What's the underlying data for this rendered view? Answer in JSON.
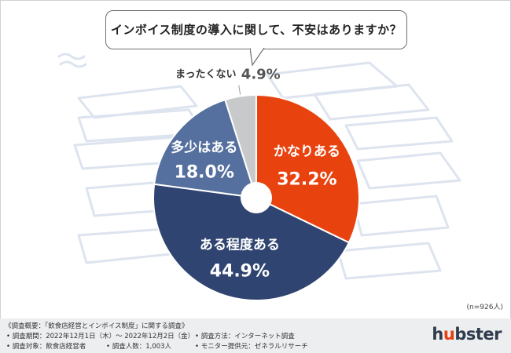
{
  "question": "インボイス制度の導入に関して、不安はありますか？",
  "sample_note": "(n=926人)",
  "footer": {
    "overview": "《調査概要：「飲食店経営とインボイス制度」に関する調査》",
    "period": "• 調査期間：2022年12月1日（木）～ 2022年12月2日（金）",
    "method": "• 調査方法：インターネット調査",
    "target": "• 調査対象：飲食店経営者",
    "count": "• 調査人数：1,003人",
    "provider": "• モニター提供元：ゼネラルリサーチ"
  },
  "logo": {
    "pre": "h",
    "accent": "u",
    "post": "bster"
  },
  "chart_data": {
    "type": "pie",
    "style": "donut",
    "title": "インボイス制度の導入に関して、不安はありますか？",
    "slices": [
      {
        "label": "かなりある",
        "value": 32.2,
        "display": "32.2%",
        "color": "#e8430f"
      },
      {
        "label": "ある程度ある",
        "value": 44.9,
        "display": "44.9%",
        "color": "#2f4470"
      },
      {
        "label": "多少はある",
        "value": 18.0,
        "display": "18.0%",
        "color": "#556f9e"
      },
      {
        "label": "まったくない",
        "value": 4.9,
        "display": "4.9%",
        "color": "#c8c9cb"
      }
    ],
    "start": "top",
    "direction": "clockwise",
    "n": 926
  }
}
